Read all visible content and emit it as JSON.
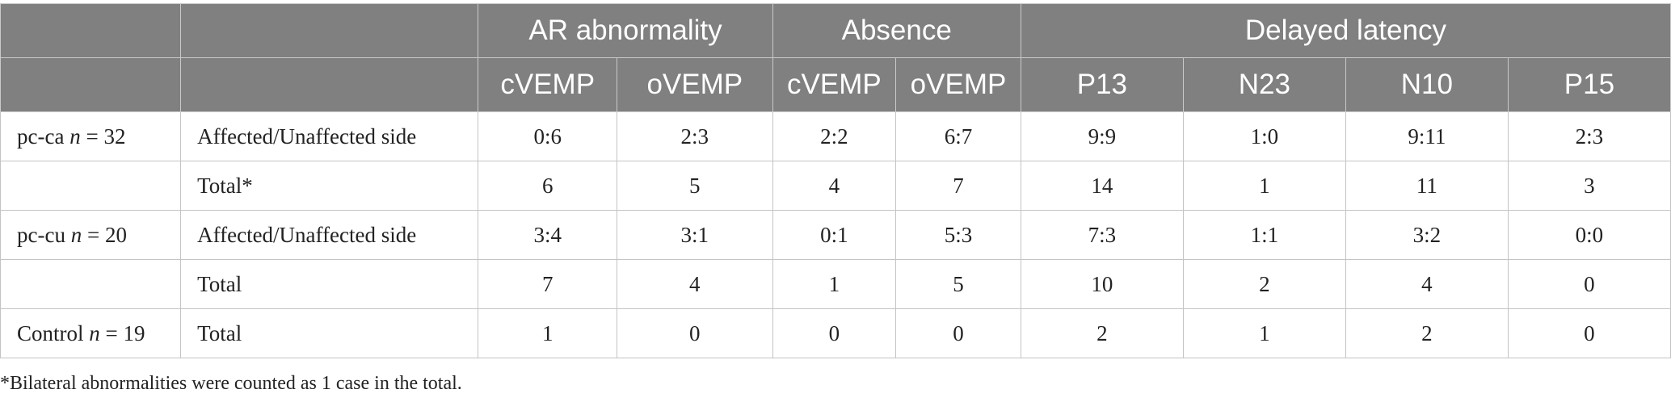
{
  "header": {
    "groups": [
      "AR abnormality",
      "Absence",
      "Delayed latency"
    ],
    "subcolumns": [
      "cVEMP",
      "oVEMP",
      "cVEMP",
      "oVEMP",
      "P13",
      "N23",
      "N10",
      "P15"
    ]
  },
  "rows": [
    {
      "group": "pc-ca",
      "n_label": "n",
      "n_value": "32",
      "label": "Affected/Unaffected side",
      "values": [
        "0:6",
        "2:3",
        "2:2",
        "6:7",
        "9:9",
        "1:0",
        "9:11",
        "2:3"
      ]
    },
    {
      "group": "",
      "n_label": "",
      "n_value": "",
      "label": "Total*",
      "values": [
        "6",
        "5",
        "4",
        "7",
        "14",
        "1",
        "11",
        "3"
      ]
    },
    {
      "group": "pc-cu",
      "n_label": "n",
      "n_value": "20",
      "label": "Affected/Unaffected side",
      "values": [
        "3:4",
        "3:1",
        "0:1",
        "5:3",
        "7:3",
        "1:1",
        "3:2",
        "0:0"
      ]
    },
    {
      "group": "",
      "n_label": "",
      "n_value": "",
      "label": "Total",
      "values": [
        "7",
        "4",
        "1",
        "5",
        "10",
        "2",
        "4",
        "0"
      ]
    },
    {
      "group": "Control",
      "n_label": "n",
      "n_value": "19",
      "label": "Total",
      "values": [
        "1",
        "0",
        "0",
        "0",
        "2",
        "1",
        "2",
        "0"
      ]
    }
  ],
  "footnote": "*Bilateral abnormalities were counted as 1 case in the total."
}
